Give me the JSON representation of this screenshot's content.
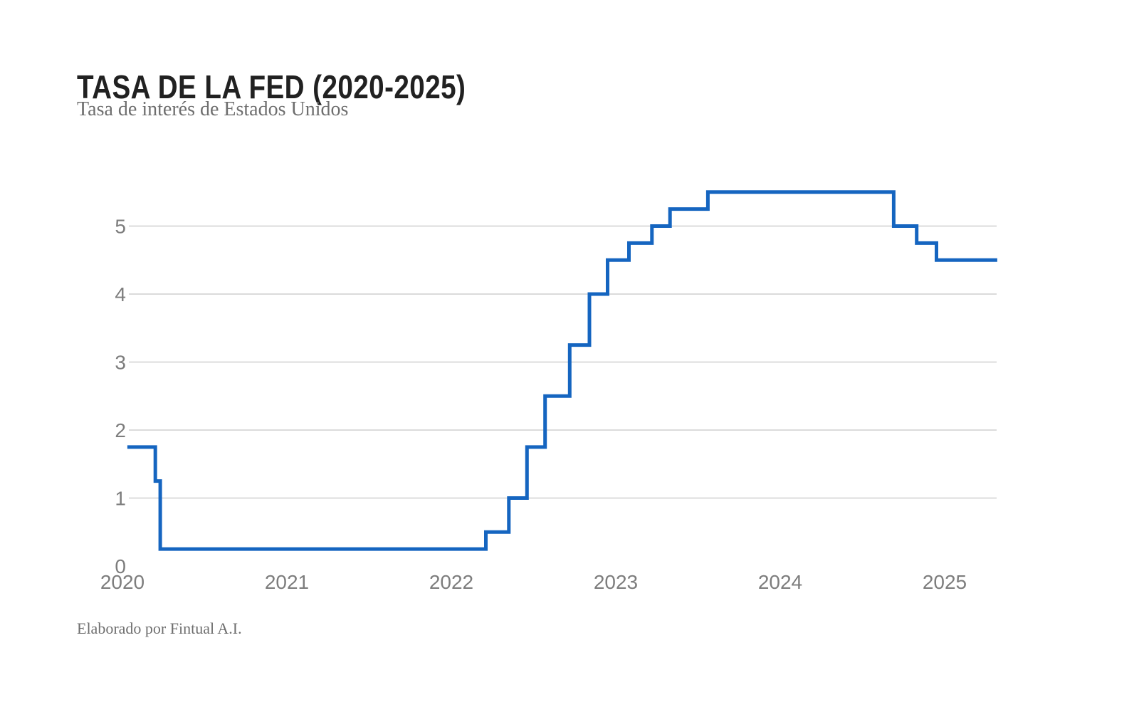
{
  "page": {
    "title": "TASA DE LA FED (2020-2025)",
    "subtitle": "Tasa de interés de Estados Unidos",
    "footer": "Elaborado por Fintual A.I."
  },
  "chart_data": {
    "type": "line",
    "step": true,
    "title": "TASA DE LA FED (2020-2025)",
    "subtitle": "Tasa de interés de Estados Unidos",
    "xlabel": "",
    "ylabel": "",
    "x_ticks": [
      2020,
      2021,
      2022,
      2023,
      2024,
      2025
    ],
    "y_ticks": [
      0,
      1,
      2,
      3,
      4,
      5
    ],
    "grid_ticks": [
      1,
      2,
      3,
      4,
      5
    ],
    "xlim": [
      2019.97,
      2025.32
    ],
    "ylim": [
      0,
      5.8
    ],
    "grid": "horizontal-only",
    "legend": "none",
    "line_color": "#1565c0",
    "grid_color": "#cfcfcf",
    "text_color": "#7d7d7d",
    "series": [
      {
        "name": "Tasa de interés de Estados Unidos",
        "points": [
          {
            "x": 2020.03,
            "y": 1.75
          },
          {
            "x": 2020.2,
            "y": 1.25
          },
          {
            "x": 2020.23,
            "y": 0.25
          },
          {
            "x": 2022.21,
            "y": 0.5
          },
          {
            "x": 2022.35,
            "y": 1.0
          },
          {
            "x": 2022.46,
            "y": 1.75
          },
          {
            "x": 2022.57,
            "y": 2.5
          },
          {
            "x": 2022.72,
            "y": 3.25
          },
          {
            "x": 2022.84,
            "y": 4.0
          },
          {
            "x": 2022.95,
            "y": 4.5
          },
          {
            "x": 2023.08,
            "y": 4.75
          },
          {
            "x": 2023.22,
            "y": 5.0
          },
          {
            "x": 2023.33,
            "y": 5.25
          },
          {
            "x": 2023.56,
            "y": 5.5
          },
          {
            "x": 2024.69,
            "y": 5.0
          },
          {
            "x": 2024.83,
            "y": 4.75
          },
          {
            "x": 2024.95,
            "y": 4.5
          },
          {
            "x": 2025.32,
            "y": 4.5
          }
        ]
      }
    ]
  }
}
